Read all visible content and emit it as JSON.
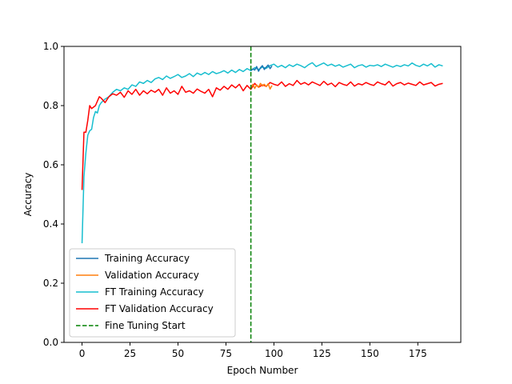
{
  "chart_data": {
    "type": "line",
    "xlabel": "Epoch Number",
    "ylabel": "Accuracy",
    "xlim": [
      -9.4,
      197.4
    ],
    "ylim": [
      0.0,
      1.0
    ],
    "xticks": [
      0,
      25,
      50,
      75,
      100,
      125,
      150,
      175
    ],
    "yticks": [
      0.0,
      0.2,
      0.4,
      0.6,
      0.8,
      1.0
    ],
    "xtick_labels": [
      "0",
      "25",
      "50",
      "75",
      "100",
      "125",
      "150",
      "175"
    ],
    "ytick_labels": [
      "0.0",
      "0.2",
      "0.4",
      "0.6",
      "0.8",
      "1.0"
    ],
    "grid": false,
    "legend_position": "lower-left",
    "series": [
      {
        "name": "Training Accuracy",
        "color": "#1f77b4",
        "x": [
          88,
          89,
          90,
          91,
          92,
          93,
          94,
          95,
          96,
          97,
          98,
          99
        ],
        "y": [
          0.918,
          0.924,
          0.92,
          0.932,
          0.916,
          0.928,
          0.935,
          0.922,
          0.93,
          0.937,
          0.925,
          0.934
        ]
      },
      {
        "name": "Validation Accuracy",
        "color": "#ff7f0e",
        "x": [
          88,
          89,
          90,
          91,
          92,
          93,
          94,
          95,
          96,
          97,
          98,
          99
        ],
        "y": [
          0.86,
          0.872,
          0.858,
          0.87,
          0.862,
          0.875,
          0.866,
          0.872,
          0.864,
          0.874,
          0.856,
          0.868
        ]
      },
      {
        "name": "FT Training Accuracy",
        "color": "#17becf",
        "x": [
          0,
          1,
          2,
          3,
          4,
          5,
          6,
          7,
          8,
          9,
          10,
          12,
          14,
          16,
          18,
          20,
          22,
          24,
          26,
          28,
          30,
          32,
          34,
          36,
          38,
          40,
          42,
          44,
          46,
          48,
          50,
          52,
          54,
          56,
          58,
          60,
          62,
          64,
          66,
          68,
          70,
          72,
          74,
          76,
          78,
          80,
          82,
          84,
          86,
          88,
          90,
          92,
          94,
          96,
          98,
          100,
          102,
          104,
          106,
          108,
          110,
          112,
          114,
          116,
          118,
          120,
          122,
          124,
          126,
          128,
          130,
          132,
          134,
          136,
          138,
          140,
          142,
          144,
          146,
          148,
          150,
          152,
          154,
          156,
          158,
          160,
          162,
          164,
          166,
          168,
          170,
          172,
          174,
          176,
          178,
          180,
          182,
          184,
          186,
          188
        ],
        "y": [
          0.335,
          0.56,
          0.64,
          0.7,
          0.715,
          0.72,
          0.76,
          0.78,
          0.775,
          0.8,
          0.81,
          0.822,
          0.83,
          0.845,
          0.855,
          0.85,
          0.86,
          0.855,
          0.87,
          0.865,
          0.88,
          0.875,
          0.885,
          0.878,
          0.89,
          0.895,
          0.888,
          0.9,
          0.892,
          0.898,
          0.905,
          0.895,
          0.9,
          0.908,
          0.898,
          0.91,
          0.904,
          0.912,
          0.905,
          0.915,
          0.908,
          0.912,
          0.918,
          0.91,
          0.92,
          0.912,
          0.922,
          0.915,
          0.925,
          0.918,
          0.928,
          0.922,
          0.93,
          0.926,
          0.935,
          0.94,
          0.93,
          0.936,
          0.928,
          0.938,
          0.932,
          0.94,
          0.935,
          0.928,
          0.938,
          0.945,
          0.932,
          0.938,
          0.944,
          0.935,
          0.94,
          0.933,
          0.938,
          0.93,
          0.935,
          0.94,
          0.928,
          0.935,
          0.938,
          0.93,
          0.936,
          0.934,
          0.938,
          0.932,
          0.94,
          0.935,
          0.93,
          0.936,
          0.932,
          0.938,
          0.934,
          0.944,
          0.936,
          0.932,
          0.94,
          0.934,
          0.942,
          0.93,
          0.938,
          0.934
        ]
      },
      {
        "name": "FT Validation Accuracy",
        "color": "#ff0000",
        "x": [
          0,
          1,
          2,
          3,
          4,
          5,
          6,
          7,
          8,
          9,
          10,
          12,
          14,
          16,
          18,
          20,
          22,
          24,
          26,
          28,
          30,
          32,
          34,
          36,
          38,
          40,
          42,
          44,
          46,
          48,
          50,
          52,
          54,
          56,
          58,
          60,
          62,
          64,
          66,
          68,
          70,
          72,
          74,
          76,
          78,
          80,
          82,
          84,
          86,
          88,
          90,
          92,
          94,
          96,
          98,
          100,
          102,
          104,
          106,
          108,
          110,
          112,
          114,
          116,
          118,
          120,
          122,
          124,
          126,
          128,
          130,
          132,
          134,
          136,
          138,
          140,
          142,
          144,
          146,
          148,
          150,
          152,
          154,
          156,
          158,
          160,
          162,
          164,
          166,
          168,
          170,
          172,
          174,
          176,
          178,
          180,
          182,
          184,
          186,
          188
        ],
        "y": [
          0.515,
          0.71,
          0.71,
          0.75,
          0.8,
          0.79,
          0.795,
          0.8,
          0.815,
          0.83,
          0.825,
          0.81,
          0.83,
          0.84,
          0.835,
          0.845,
          0.828,
          0.85,
          0.838,
          0.855,
          0.835,
          0.85,
          0.84,
          0.852,
          0.845,
          0.855,
          0.835,
          0.86,
          0.842,
          0.85,
          0.838,
          0.865,
          0.845,
          0.85,
          0.842,
          0.856,
          0.848,
          0.842,
          0.855,
          0.83,
          0.86,
          0.852,
          0.865,
          0.855,
          0.87,
          0.86,
          0.872,
          0.85,
          0.868,
          0.855,
          0.875,
          0.862,
          0.87,
          0.865,
          0.878,
          0.872,
          0.868,
          0.88,
          0.865,
          0.874,
          0.868,
          0.885,
          0.872,
          0.878,
          0.87,
          0.88,
          0.874,
          0.868,
          0.882,
          0.87,
          0.876,
          0.864,
          0.878,
          0.872,
          0.868,
          0.88,
          0.866,
          0.874,
          0.87,
          0.878,
          0.872,
          0.868,
          0.88,
          0.874,
          0.87,
          0.882,
          0.866,
          0.874,
          0.878,
          0.87,
          0.876,
          0.872,
          0.868,
          0.88,
          0.87,
          0.874,
          0.878,
          0.866,
          0.872,
          0.875
        ]
      },
      {
        "name": "Fine Tuning Start",
        "color": "#008000",
        "style": "dashed",
        "vline_x": 88
      }
    ]
  }
}
